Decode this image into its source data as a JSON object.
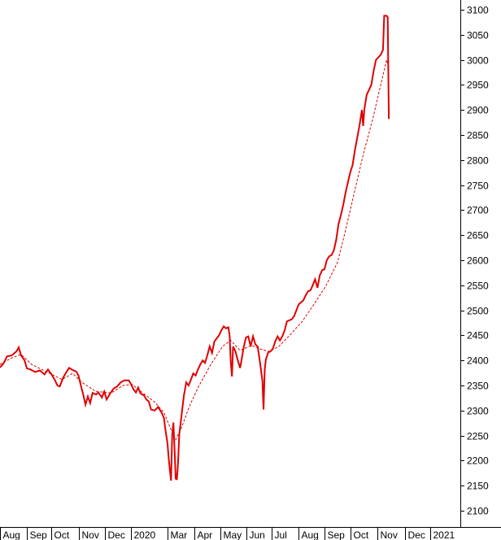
{
  "chart_data": {
    "type": "line",
    "title": "",
    "xlabel": "",
    "ylabel": "",
    "ylim": [
      2080,
      3120
    ],
    "grid": false,
    "colors": {
      "price": "#e00000",
      "average": "#e00000"
    },
    "y_ticks": [
      3100,
      3050,
      3000,
      2950,
      2900,
      2850,
      2800,
      2750,
      2700,
      2650,
      2600,
      2550,
      2500,
      2450,
      2400,
      2350,
      2300,
      2250,
      2200,
      2150,
      2100
    ],
    "x_ticks": [
      "Aug",
      "Sep",
      "Oct",
      "Nov",
      "Dec",
      "2020",
      "Mar",
      "Apr",
      "May",
      "Jun",
      "Jul",
      "Aug",
      "Sep",
      "Oct",
      "Nov",
      "Dec",
      "2021"
    ],
    "x_tick_pos": [
      0,
      22.75,
      44,
      67.3,
      89.8,
      112,
      143,
      166,
      188.5,
      210.7,
      232,
      255,
      277,
      299.4,
      322,
      345.7,
      367
    ],
    "x_range": [
      0,
      393
    ],
    "series": [
      {
        "style": "solid",
        "points": [
          [
            0,
            2386
          ],
          [
            3,
            2394
          ],
          [
            6,
            2408
          ],
          [
            10,
            2410
          ],
          [
            14,
            2418
          ],
          [
            16,
            2426
          ],
          [
            18,
            2410
          ],
          [
            21,
            2400
          ],
          [
            23,
            2384
          ],
          [
            26,
            2382
          ],
          [
            30,
            2377
          ],
          [
            34,
            2380
          ],
          [
            38,
            2372
          ],
          [
            41,
            2382
          ],
          [
            44,
            2372
          ],
          [
            47,
            2360
          ],
          [
            49,
            2350
          ],
          [
            51,
            2348
          ],
          [
            54,
            2366
          ],
          [
            57,
            2378
          ],
          [
            59,
            2385
          ],
          [
            62,
            2381
          ],
          [
            65,
            2378
          ],
          [
            67,
            2370
          ],
          [
            69,
            2350
          ],
          [
            71,
            2332
          ],
          [
            73,
            2312
          ],
          [
            75,
            2328
          ],
          [
            77,
            2315
          ],
          [
            79,
            2335
          ],
          [
            82,
            2332
          ],
          [
            84,
            2336
          ],
          [
            87,
            2326
          ],
          [
            89,
            2338
          ],
          [
            91,
            2322
          ],
          [
            94,
            2334
          ],
          [
            97,
            2344
          ],
          [
            100,
            2348
          ],
          [
            103,
            2356
          ],
          [
            106,
            2360
          ],
          [
            110,
            2360
          ],
          [
            112,
            2352
          ],
          [
            114,
            2342
          ],
          [
            116,
            2336
          ],
          [
            118,
            2346
          ],
          [
            120,
            2334
          ],
          [
            123,
            2330
          ],
          [
            125,
            2322
          ],
          [
            127,
            2318
          ],
          [
            129,
            2302
          ],
          [
            132,
            2300
          ],
          [
            135,
            2307
          ],
          [
            138,
            2296
          ],
          [
            140,
            2285
          ],
          [
            141,
            2265
          ],
          [
            143,
            2235
          ],
          [
            144,
            2205
          ],
          [
            145,
            2182
          ],
          [
            146,
            2160
          ],
          [
            147,
            2250
          ],
          [
            148,
            2276
          ],
          [
            149,
            2224
          ],
          [
            150,
            2164
          ],
          [
            151,
            2163
          ],
          [
            152,
            2195
          ],
          [
            153,
            2252
          ],
          [
            155,
            2290
          ],
          [
            157,
            2330
          ],
          [
            159,
            2356
          ],
          [
            161,
            2350
          ],
          [
            163,
            2362
          ],
          [
            165,
            2374
          ],
          [
            167,
            2370
          ],
          [
            169,
            2382
          ],
          [
            171,
            2392
          ],
          [
            173,
            2400
          ],
          [
            175,
            2395
          ],
          [
            177,
            2410
          ],
          [
            179,
            2428
          ],
          [
            181,
            2415
          ],
          [
            183,
            2438
          ],
          [
            185,
            2444
          ],
          [
            187,
            2450
          ],
          [
            189,
            2460
          ],
          [
            191,
            2468
          ],
          [
            193,
            2464
          ],
          [
            195,
            2466
          ],
          [
            196,
            2450
          ],
          [
            197,
            2398
          ],
          [
            198,
            2368
          ],
          [
            199,
            2428
          ],
          [
            201,
            2418
          ],
          [
            203,
            2400
          ],
          [
            205,
            2385
          ],
          [
            206,
            2398
          ],
          [
            208,
            2426
          ],
          [
            210,
            2446
          ],
          [
            212,
            2448
          ],
          [
            214,
            2428
          ],
          [
            216,
            2448
          ],
          [
            218,
            2432
          ],
          [
            220,
            2428
          ],
          [
            222,
            2396
          ],
          [
            224,
            2360
          ],
          [
            225,
            2302
          ],
          [
            226,
            2382
          ],
          [
            227,
            2402
          ],
          [
            229,
            2416
          ],
          [
            231,
            2418
          ],
          [
            233,
            2424
          ],
          [
            235,
            2438
          ],
          [
            237,
            2448
          ],
          [
            239,
            2440
          ],
          [
            241,
            2448
          ],
          [
            243,
            2460
          ],
          [
            245,
            2478
          ],
          [
            247,
            2480
          ],
          [
            249,
            2482
          ],
          [
            251,
            2488
          ],
          [
            253,
            2500
          ],
          [
            255,
            2512
          ],
          [
            257,
            2516
          ],
          [
            259,
            2520
          ],
          [
            261,
            2530
          ],
          [
            263,
            2538
          ],
          [
            265,
            2540
          ],
          [
            267,
            2550
          ],
          [
            269,
            2562
          ],
          [
            271,
            2545
          ],
          [
            273,
            2570
          ],
          [
            275,
            2580
          ],
          [
            277,
            2582
          ],
          [
            279,
            2600
          ],
          [
            281,
            2608
          ],
          [
            283,
            2610
          ],
          [
            285,
            2620
          ],
          [
            287,
            2640
          ],
          [
            289,
            2672
          ],
          [
            291,
            2690
          ],
          [
            293,
            2710
          ],
          [
            295,
            2735
          ],
          [
            297,
            2755
          ],
          [
            299,
            2775
          ],
          [
            301,
            2790
          ],
          [
            303,
            2820
          ],
          [
            305,
            2845
          ],
          [
            307,
            2870
          ],
          [
            309,
            2900
          ],
          [
            310,
            2868
          ],
          [
            311,
            2900
          ],
          [
            313,
            2930
          ],
          [
            315,
            2940
          ],
          [
            317,
            2950
          ],
          [
            319,
            2978
          ],
          [
            321,
            3000
          ],
          [
            323,
            3005
          ],
          [
            325,
            3010
          ],
          [
            327,
            3020
          ],
          [
            328,
            3088
          ],
          [
            330,
            3088
          ],
          [
            331,
            3085
          ],
          [
            332,
            2882
          ]
        ]
      },
      {
        "style": "dashed",
        "points": [
          [
            0,
            2392
          ],
          [
            10,
            2405
          ],
          [
            18,
            2412
          ],
          [
            27,
            2392
          ],
          [
            40,
            2377
          ],
          [
            53,
            2362
          ],
          [
            62,
            2374
          ],
          [
            70,
            2356
          ],
          [
            82,
            2338
          ],
          [
            95,
            2335
          ],
          [
            105,
            2350
          ],
          [
            113,
            2352
          ],
          [
            122,
            2335
          ],
          [
            132,
            2317
          ],
          [
            140,
            2296
          ],
          [
            146,
            2262
          ],
          [
            150,
            2242
          ],
          [
            155,
            2266
          ],
          [
            162,
            2310
          ],
          [
            170,
            2350
          ],
          [
            180,
            2392
          ],
          [
            190,
            2428
          ],
          [
            197,
            2440
          ],
          [
            205,
            2420
          ],
          [
            215,
            2430
          ],
          [
            223,
            2422
          ],
          [
            230,
            2418
          ],
          [
            238,
            2428
          ],
          [
            248,
            2452
          ],
          [
            258,
            2478
          ],
          [
            268,
            2512
          ],
          [
            278,
            2548
          ],
          [
            288,
            2595
          ],
          [
            295,
            2660
          ],
          [
            302,
            2730
          ],
          [
            310,
            2810
          ],
          [
            318,
            2880
          ],
          [
            325,
            2950
          ],
          [
            330,
            3000
          ],
          [
            332,
            2985
          ]
        ]
      }
    ]
  }
}
